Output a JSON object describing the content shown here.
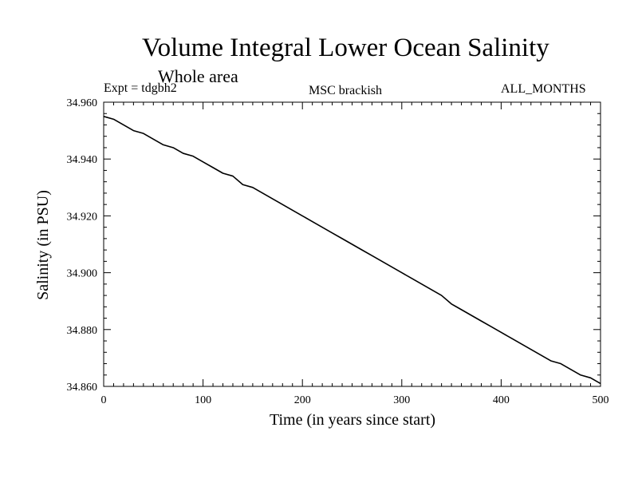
{
  "chart_data": {
    "type": "line",
    "title": "Volume Integral Lower Ocean Salinity",
    "subtitle": "Whole area",
    "annotations": {
      "left": "Expt = tdgbh2",
      "center": "MSC brackish",
      "right": "ALL_MONTHS"
    },
    "xlabel": "Time (in years since start)",
    "ylabel": "Salinity (in PSU)",
    "xlim": [
      0,
      500
    ],
    "ylim": [
      34.86,
      34.96
    ],
    "x_ticks": [
      0,
      100,
      200,
      300,
      400,
      500
    ],
    "x_tick_labels": [
      "0",
      "100",
      "200",
      "300",
      "400",
      "500"
    ],
    "y_ticks": [
      34.86,
      34.88,
      34.9,
      34.92,
      34.94,
      34.96
    ],
    "y_tick_labels": [
      "34.860",
      "34.880",
      "34.900",
      "34.920",
      "34.940",
      "34.960"
    ],
    "grid": false,
    "series": [
      {
        "x": [
          0,
          10,
          20,
          30,
          40,
          50,
          60,
          70,
          80,
          90,
          100,
          110,
          120,
          130,
          140,
          150,
          160,
          170,
          180,
          190,
          200,
          210,
          220,
          230,
          240,
          250,
          260,
          270,
          280,
          290,
          300,
          310,
          320,
          330,
          340,
          350,
          360,
          370,
          380,
          390,
          400,
          410,
          420,
          430,
          440,
          450,
          460,
          470,
          480,
          490,
          500
        ],
        "values": [
          34.955,
          34.954,
          34.952,
          34.95,
          34.949,
          34.947,
          34.945,
          34.944,
          34.942,
          34.941,
          34.939,
          34.937,
          34.935,
          34.934,
          34.931,
          34.93,
          34.928,
          34.926,
          34.924,
          34.922,
          34.92,
          34.918,
          34.916,
          34.914,
          34.912,
          34.91,
          34.908,
          34.906,
          34.904,
          34.902,
          34.9,
          34.898,
          34.896,
          34.894,
          34.892,
          34.889,
          34.887,
          34.885,
          34.883,
          34.881,
          34.879,
          34.877,
          34.875,
          34.873,
          34.871,
          34.869,
          34.868,
          34.866,
          34.864,
          34.863,
          34.861
        ]
      }
    ]
  }
}
